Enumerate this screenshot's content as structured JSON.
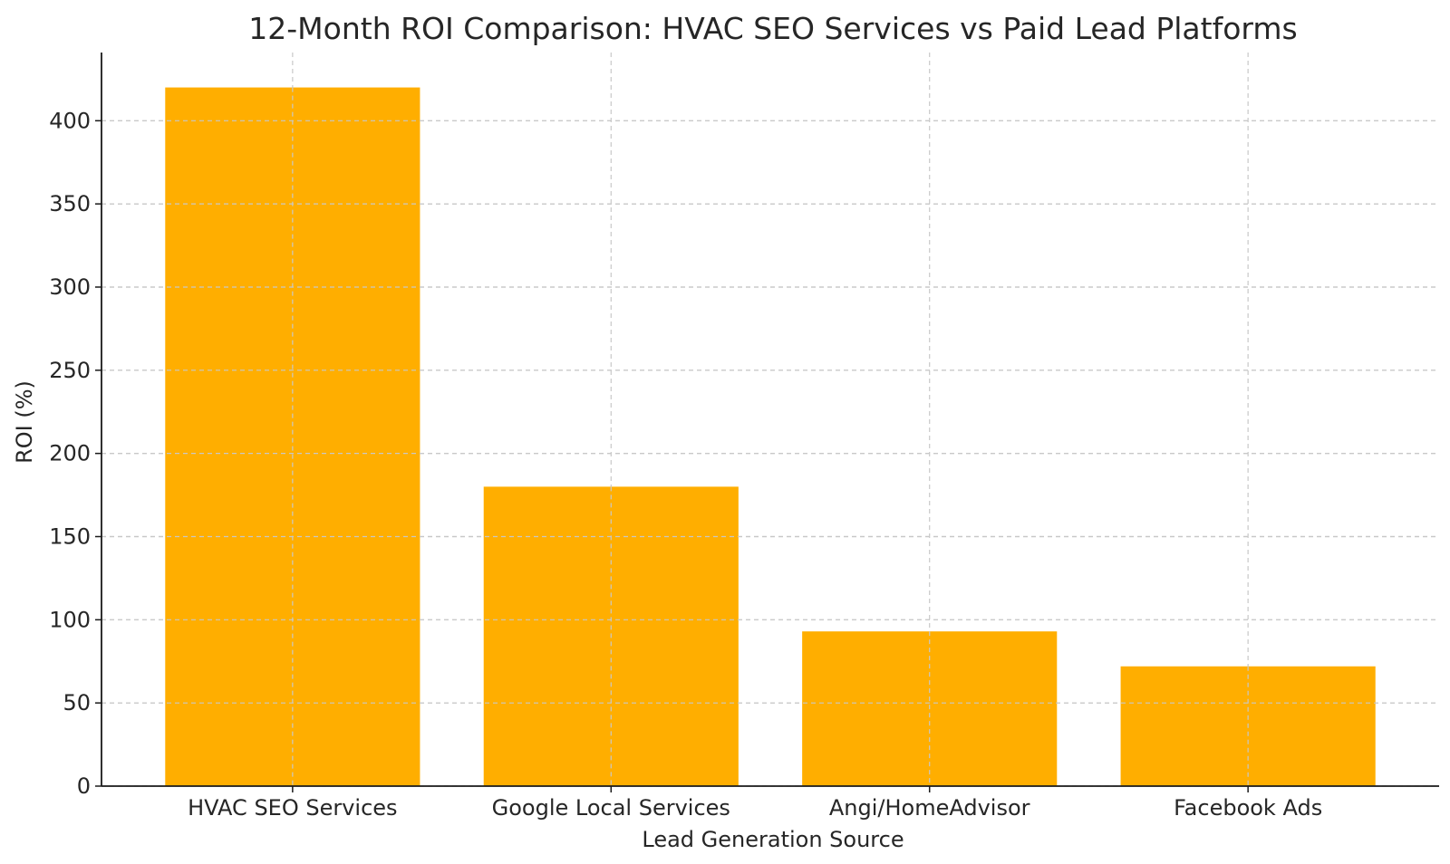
{
  "chart_data": {
    "type": "bar",
    "title": "12-Month ROI Comparison: HVAC SEO Services vs Paid Lead Platforms",
    "xlabel": "Lead Generation Source",
    "ylabel": "ROI (%)",
    "categories": [
      "HVAC SEO Services",
      "Google Local Services",
      "Angi/HomeAdvisor",
      "Facebook Ads"
    ],
    "values": [
      420,
      180,
      93,
      72
    ],
    "ylim": [
      0,
      441
    ],
    "yticks": [
      0,
      50,
      100,
      150,
      200,
      250,
      300,
      350,
      400
    ],
    "grid": true,
    "bar_color": "#FFAE00"
  }
}
